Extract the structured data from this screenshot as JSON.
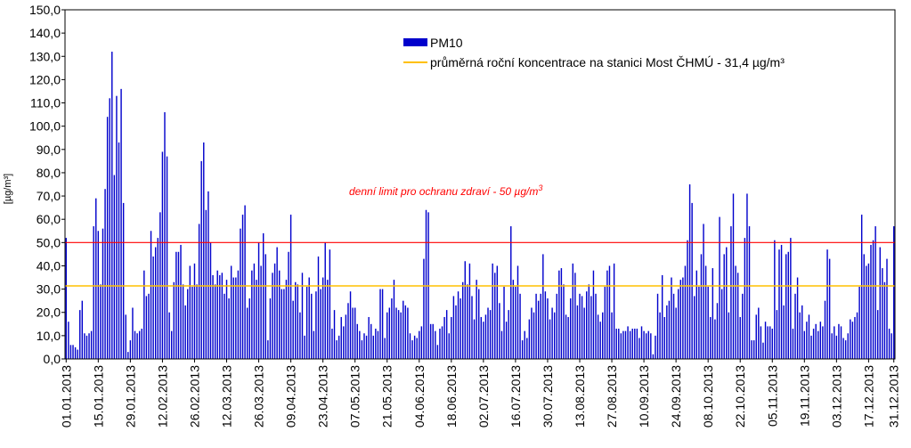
{
  "chart_data": {
    "type": "bar",
    "ylabel": "[µg/m³]",
    "ylim": [
      0,
      150
    ],
    "y_ticks": [
      "0,0",
      "10,0",
      "20,0",
      "30,0",
      "40,0",
      "50,0",
      "60,0",
      "70,0",
      "80,0",
      "90,0",
      "100,0",
      "110,0",
      "120,0",
      "130,0",
      "140,0",
      "150,0"
    ],
    "x_tick_labels": [
      "01.01.2013",
      "15.01.2013",
      "29.01.2013",
      "12.02.2013",
      "26.02.2013",
      "12.03.2013",
      "26.03.2013",
      "09.04.2013",
      "23.04.2013",
      "07.05.2013",
      "21.05.2013",
      "04.06.2013",
      "18.06.2013",
      "02.07.2013",
      "16.07.2013",
      "30.07.2013",
      "13.08.2013",
      "27.08.2013",
      "10.09.2013",
      "24.09.2013",
      "08.10.2013",
      "22.10.2013",
      "05.11.2013",
      "19.11.2013",
      "03.12.2013",
      "17.12.2013",
      "31.12.2013"
    ],
    "grid": false,
    "legend_position": "top-right",
    "series_color": "#0000cc",
    "mean_color": "#ffc000",
    "limit_color": "#ff0000",
    "series": [
      {
        "name": "PM10",
        "values": [
          52,
          16,
          6,
          6,
          5,
          4,
          21,
          25,
          11,
          10,
          11,
          12,
          57,
          69,
          55,
          32,
          56,
          73,
          104,
          112,
          132,
          79,
          113,
          93,
          116,
          67,
          19,
          3,
          8,
          22,
          12,
          11,
          12,
          13,
          38,
          27,
          28,
          55,
          44,
          48,
          52,
          63,
          89,
          106,
          87,
          20,
          12,
          33,
          46,
          46,
          49,
          32,
          23,
          30,
          40,
          31,
          41,
          32,
          58,
          85,
          93,
          64,
          72,
          50,
          36,
          32,
          38,
          36,
          37,
          28,
          34,
          26,
          40,
          35,
          35,
          38,
          56,
          62,
          66,
          22,
          26,
          38,
          41,
          34,
          50,
          40,
          54,
          45,
          8,
          26,
          37,
          41,
          48,
          38,
          30,
          30,
          34,
          46,
          62,
          25,
          33,
          32,
          20,
          37,
          10,
          31,
          35,
          28,
          12,
          29,
          44,
          30,
          35,
          50,
          34,
          47,
          13,
          21,
          8,
          10,
          18,
          14,
          19,
          24,
          29,
          22,
          22,
          15,
          12,
          8,
          11,
          10,
          18,
          15,
          10,
          13,
          12,
          30,
          30,
          9,
          20,
          22,
          26,
          34,
          22,
          21,
          20,
          25,
          23,
          22,
          11,
          8,
          10,
          9,
          12,
          14,
          43,
          64,
          63,
          15,
          15,
          12,
          6,
          13,
          14,
          18,
          21,
          11,
          18,
          27,
          23,
          29,
          26,
          33,
          42,
          32,
          41,
          27,
          17,
          34,
          30,
          18,
          16,
          19,
          22,
          21,
          41,
          37,
          40,
          24,
          12,
          31,
          16,
          21,
          57,
          34,
          31,
          40,
          28,
          8,
          12,
          9,
          17,
          22,
          20,
          28,
          25,
          28,
          45,
          29,
          26,
          17,
          22,
          20,
          28,
          38,
          39,
          32,
          19,
          18,
          26,
          41,
          37,
          23,
          28,
          27,
          22,
          29,
          32,
          27,
          38,
          28,
          19,
          16,
          20,
          31,
          38,
          40,
          20,
          41,
          13,
          13,
          11,
          12,
          12,
          14,
          12,
          13,
          13,
          13,
          9,
          14,
          12,
          11,
          12,
          11,
          2,
          10,
          28,
          20,
          36,
          18,
          23,
          25,
          35,
          28,
          22,
          30,
          34,
          35,
          40,
          51,
          75,
          67,
          27,
          38,
          31,
          45,
          58,
          40,
          31,
          18,
          39,
          17,
          24,
          61,
          30,
          45,
          48,
          20,
          57,
          71,
          40,
          37,
          18,
          28,
          52,
          71,
          57,
          8,
          8,
          19,
          22,
          14,
          7,
          16,
          14,
          14,
          13,
          51,
          21,
          47,
          49,
          23,
          45,
          46,
          52,
          13,
          28,
          35,
          20,
          23,
          12,
          16,
          19,
          10,
          13,
          15,
          12,
          16,
          14,
          25,
          47,
          43,
          11,
          14,
          10,
          15,
          14,
          9,
          8,
          11,
          17,
          16,
          18,
          20,
          31,
          62,
          45,
          40,
          41,
          49,
          51,
          57,
          21,
          48,
          39,
          33,
          43,
          13,
          11,
          57
        ]
      }
    ],
    "mean_line": {
      "label": "průměrná roční koncentrace na stanici Most ČHMÚ - 31,4 µg/m³",
      "value": 31.4
    },
    "limit_line": {
      "label": "denní limit pro ochranu zdraví - 50 µg/m",
      "label_sup": "3",
      "value": 50
    }
  }
}
